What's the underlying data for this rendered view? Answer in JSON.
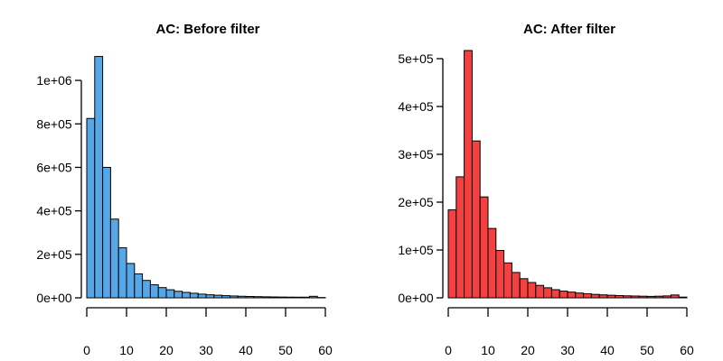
{
  "chart_data": [
    {
      "type": "bar",
      "title": "AC: Before filter",
      "fill_color": "#56A7E8",
      "bin_width": 2,
      "x_range": [
        0,
        60
      ],
      "x_ticks": [
        0,
        10,
        20,
        30,
        40,
        50,
        60
      ],
      "x_tick_labels": [
        "0",
        "10",
        "20",
        "30",
        "40",
        "50",
        "60"
      ],
      "y_range": [
        0,
        1100000
      ],
      "y_ticks": [
        0,
        200000,
        400000,
        600000,
        800000,
        1000000
      ],
      "y_tick_labels": [
        "0e+00",
        "2e+05",
        "4e+05",
        "6e+05",
        "8e+05",
        "1e+06"
      ],
      "bin_starts": [
        0,
        2,
        4,
        6,
        8,
        10,
        12,
        14,
        16,
        18,
        20,
        22,
        24,
        26,
        28,
        30,
        32,
        34,
        36,
        38,
        40,
        42,
        44,
        46,
        48,
        50,
        52,
        54,
        56,
        58
      ],
      "values": [
        825000,
        1110000,
        600000,
        362000,
        230000,
        158000,
        110000,
        80000,
        60000,
        47000,
        37000,
        30000,
        25000,
        21000,
        17000,
        14000,
        12000,
        10000,
        8500,
        7200,
        6200,
        5400,
        4700,
        4100,
        3600,
        3200,
        3000,
        3000,
        7000,
        1500
      ]
    },
    {
      "type": "bar",
      "title": "AC: After filter",
      "fill_color": "#F54040",
      "bin_width": 2,
      "x_range": [
        0,
        60
      ],
      "x_ticks": [
        0,
        10,
        20,
        30,
        40,
        50,
        60
      ],
      "x_tick_labels": [
        "0",
        "10",
        "20",
        "30",
        "40",
        "50",
        "60"
      ],
      "y_range": [
        0,
        500000
      ],
      "y_ticks": [
        0,
        100000,
        200000,
        300000,
        400000,
        500000
      ],
      "y_tick_labels": [
        "0e+00",
        "1e+05",
        "2e+05",
        "3e+05",
        "4e+05",
        "5e+05"
      ],
      "bin_starts": [
        0,
        2,
        4,
        6,
        8,
        10,
        12,
        14,
        16,
        18,
        20,
        22,
        24,
        26,
        28,
        30,
        32,
        34,
        36,
        38,
        40,
        42,
        44,
        46,
        48,
        50,
        52,
        54,
        56,
        58
      ],
      "values": [
        184000,
        253000,
        517000,
        328000,
        211000,
        145000,
        99000,
        73000,
        53000,
        40000,
        32000,
        26000,
        21000,
        17000,
        14000,
        12000,
        10000,
        8500,
        7200,
        6200,
        5400,
        4700,
        4200,
        3800,
        3400,
        3000,
        3400,
        4000,
        6000,
        1500
      ]
    }
  ]
}
